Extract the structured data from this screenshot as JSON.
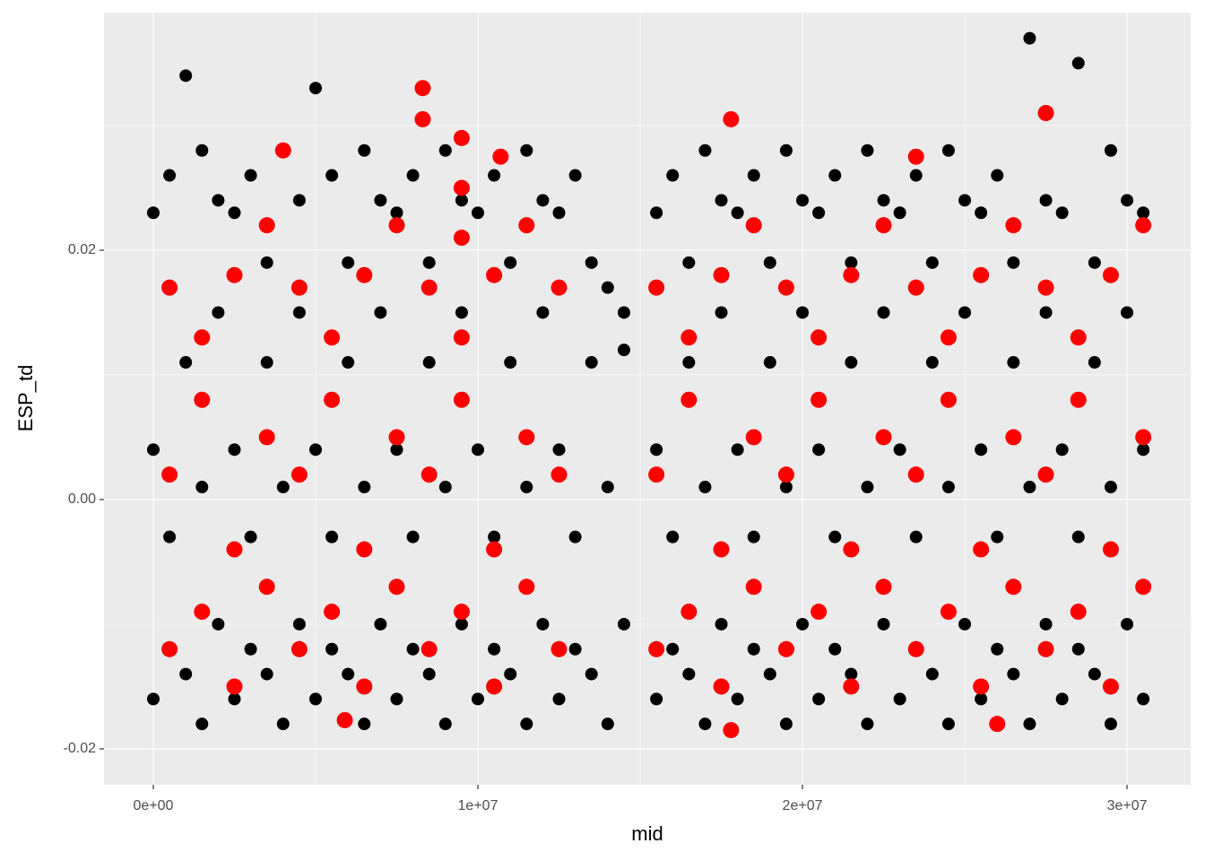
{
  "chart_data": {
    "type": "scatter",
    "x_label": "mid",
    "y_label": "ESP_td",
    "xlim": [
      -1519000,
      31960000
    ],
    "ylim": [
      -0.02288,
      0.03906
    ],
    "xticks": [
      {
        "value": 0,
        "label": "0e+00"
      },
      {
        "value": 10000000,
        "label": "1e+07"
      },
      {
        "value": 20000000,
        "label": "2e+07"
      },
      {
        "value": 30000000,
        "label": "3e+07"
      }
    ],
    "yticks": [
      -0.02,
      {
        "value": 0,
        "label": "0.00"
      },
      0.02
    ],
    "minor_xticks": [
      5000000,
      15000000,
      25000000
    ],
    "minor_yticks": [
      -0.01,
      0.01,
      0.03
    ],
    "grid": true,
    "series": [
      {
        "color": "#000000",
        "x": [
          0,
          0,
          0,
          500000.0,
          500000.0,
          500000.0,
          1000000.0,
          1000000.0,
          1000000.0,
          1500000.0,
          1500000.0,
          1500000.0,
          2000000.0,
          2000000.0,
          2000000.0,
          2500000.0,
          2500000.0,
          2500000.0,
          3000000.0,
          3000000.0,
          3000000.0,
          3500000.0,
          3500000.0,
          3500000.0,
          4000000.0,
          4000000.0,
          4000000.0,
          4500000.0,
          4500000.0,
          4500000.0,
          5000000.0,
          5000000.0,
          5000000.0,
          5500000.0,
          5500000.0,
          5500000.0,
          6000000.0,
          6000000.0,
          6000000.0,
          6500000.0,
          6500000.0,
          6500000.0,
          7000000.0,
          7000000.0,
          7000000.0,
          7500000.0,
          7500000.0,
          7500000.0,
          8000000.0,
          8000000.0,
          8000000.0,
          8500000.0,
          8500000.0,
          8500000.0,
          9000000.0,
          9000000.0,
          9000000.0,
          9500000.0,
          9500000.0,
          9500000.0,
          10000000.0,
          10000000.0,
          10000000.0,
          10500000.0,
          10500000.0,
          10500000.0,
          11000000.0,
          11000000.0,
          11000000.0,
          11500000.0,
          11500000.0,
          11500000.0,
          12000000.0,
          12000000.0,
          12000000.0,
          12500000.0,
          12500000.0,
          12500000.0,
          13000000.0,
          13000000.0,
          13000000.0,
          13500000.0,
          13500000.0,
          13500000.0,
          14000000.0,
          14000000.0,
          14000000.0,
          14500000.0,
          14500000.0,
          14500000.0,
          15500000.0,
          15500000.0,
          15500000.0,
          16000000.0,
          16000000.0,
          16000000.0,
          16500000.0,
          16500000.0,
          16500000.0,
          17000000.0,
          17000000.0,
          17000000.0,
          17500000.0,
          17500000.0,
          17500000.0,
          18000000.0,
          18000000.0,
          18000000.0,
          18500000.0,
          18500000.0,
          18500000.0,
          19000000.0,
          19000000.0,
          19000000.0,
          19500000.0,
          19500000.0,
          19500000.0,
          20000000.0,
          20000000.0,
          20000000.0,
          20500000.0,
          20500000.0,
          20500000.0,
          21000000.0,
          21000000.0,
          21000000.0,
          21500000.0,
          21500000.0,
          21500000.0,
          22000000.0,
          22000000.0,
          22000000.0,
          22500000.0,
          22500000.0,
          22500000.0,
          23000000.0,
          23000000.0,
          23000000.0,
          23500000.0,
          23500000.0,
          23500000.0,
          24000000.0,
          24000000.0,
          24000000.0,
          24500000.0,
          24500000.0,
          24500000.0,
          25000000.0,
          25000000.0,
          25000000.0,
          25500000.0,
          25500000.0,
          25500000.0,
          26000000.0,
          26000000.0,
          26000000.0,
          26500000.0,
          26500000.0,
          26500000.0,
          27000000.0,
          27000000.0,
          27000000.0,
          27500000.0,
          27500000.0,
          27500000.0,
          28000000.0,
          28000000.0,
          28000000.0,
          28500000.0,
          28500000.0,
          28500000.0,
          29000000.0,
          29000000.0,
          29000000.0,
          29500000.0,
          29500000.0,
          29500000.0,
          30000000.0,
          30000000.0,
          30000000.0,
          30500000.0,
          30500000.0,
          30500000.0
        ],
        "values": [
          -0.016,
          0.004,
          0.023,
          -0.012,
          -0.003,
          0.026,
          -0.014,
          0.011,
          0.034,
          -0.018,
          0.001,
          0.028,
          -0.01,
          0.015,
          0.024,
          -0.016,
          0.004,
          0.023,
          -0.012,
          -0.003,
          0.026,
          -0.014,
          0.011,
          0.019,
          -0.018,
          0.001,
          0.028,
          -0.01,
          0.015,
          0.024,
          -0.016,
          0.004,
          0.033,
          -0.012,
          -0.003,
          0.026,
          -0.014,
          0.011,
          0.019,
          -0.018,
          0.001,
          0.028,
          -0.01,
          0.015,
          0.024,
          -0.016,
          0.004,
          0.023,
          -0.012,
          -0.003,
          0.026,
          -0.014,
          0.011,
          0.019,
          -0.018,
          0.001,
          0.028,
          -0.01,
          0.015,
          0.024,
          -0.016,
          0.004,
          0.023,
          -0.012,
          -0.003,
          0.026,
          -0.014,
          0.011,
          0.019,
          -0.018,
          0.001,
          0.028,
          -0.01,
          0.015,
          0.024,
          -0.016,
          0.004,
          0.023,
          -0.012,
          -0.003,
          0.026,
          -0.014,
          0.011,
          0.019,
          -0.018,
          0.001,
          0.017,
          -0.01,
          0.015,
          0.012,
          -0.016,
          0.004,
          0.023,
          -0.012,
          -0.003,
          0.026,
          -0.014,
          0.011,
          0.019,
          -0.018,
          0.001,
          0.028,
          -0.01,
          0.015,
          0.024,
          -0.016,
          0.004,
          0.023,
          -0.012,
          -0.003,
          0.026,
          -0.014,
          0.011,
          0.019,
          -0.018,
          0.001,
          0.028,
          -0.01,
          0.015,
          0.024,
          -0.016,
          0.004,
          0.023,
          -0.012,
          -0.003,
          0.026,
          -0.014,
          0.011,
          0.019,
          -0.018,
          0.001,
          0.028,
          -0.01,
          0.015,
          0.024,
          -0.016,
          0.004,
          0.023,
          -0.012,
          -0.003,
          0.026,
          -0.014,
          0.011,
          0.019,
          -0.018,
          0.001,
          0.028,
          -0.01,
          0.015,
          0.024,
          -0.016,
          0.004,
          0.023,
          -0.012,
          -0.003,
          0.026,
          -0.014,
          0.011,
          0.019,
          -0.018,
          0.001,
          0.037,
          -0.01,
          0.015,
          0.024,
          -0.016,
          0.004,
          0.023,
          -0.012,
          -0.003,
          0.035,
          -0.014,
          0.011,
          0.019,
          -0.018,
          0.001,
          0.028,
          -0.01,
          0.015,
          0.024,
          -0.016,
          0.004,
          0.023
        ]
      },
      {
        "color": "#ff0000",
        "x": [
          500000.0,
          500000.0,
          500000.0,
          1500000.0,
          1500000.0,
          1500000.0,
          2500000.0,
          2500000.0,
          2500000.0,
          3500000.0,
          3500000.0,
          3500000.0,
          4500000.0,
          4500000.0,
          4500000.0,
          5500000.0,
          5500000.0,
          5500000.0,
          6500000.0,
          6500000.0,
          6500000.0,
          7500000.0,
          7500000.0,
          7500000.0,
          8500000.0,
          8500000.0,
          8500000.0,
          9500000.0,
          9500000.0,
          9500000.0,
          10500000.0,
          10500000.0,
          10500000.0,
          11500000.0,
          11500000.0,
          11500000.0,
          12500000.0,
          12500000.0,
          12500000.0,
          15500000.0,
          15500000.0,
          15500000.0,
          16500000.0,
          16500000.0,
          16500000.0,
          17500000.0,
          17500000.0,
          17500000.0,
          18500000.0,
          18500000.0,
          18500000.0,
          19500000.0,
          19500000.0,
          19500000.0,
          20500000.0,
          20500000.0,
          20500000.0,
          21500000.0,
          21500000.0,
          21500000.0,
          22500000.0,
          22500000.0,
          22500000.0,
          23500000.0,
          23500000.0,
          23500000.0,
          24500000.0,
          24500000.0,
          24500000.0,
          25500000.0,
          25500000.0,
          25500000.0,
          26500000.0,
          26500000.0,
          26500000.0,
          27500000.0,
          27500000.0,
          27500000.0,
          28500000.0,
          28500000.0,
          28500000.0,
          29500000.0,
          29500000.0,
          29500000.0,
          30500000.0,
          30500000.0,
          30500000.0,
          8300000.0,
          8300000.0,
          9500000.0,
          9500000.0,
          9500000.0,
          4000000.0,
          10700000.0,
          17800000.0,
          27500000.0,
          23500000.0,
          17800000.0,
          26000000.0,
          5900000.0
        ],
        "values": [
          -0.012,
          0.002,
          0.017,
          -0.009,
          0.008,
          0.013,
          -0.015,
          -0.004,
          0.018,
          -0.007,
          0.005,
          0.022,
          -0.012,
          0.002,
          0.017,
          -0.009,
          0.008,
          0.013,
          -0.015,
          -0.004,
          0.018,
          -0.007,
          0.005,
          0.022,
          -0.012,
          0.002,
          0.017,
          -0.009,
          0.008,
          0.013,
          -0.015,
          -0.004,
          0.018,
          -0.007,
          0.005,
          0.022,
          -0.012,
          0.002,
          0.017,
          -0.012,
          0.002,
          0.017,
          -0.009,
          0.008,
          0.013,
          -0.015,
          -0.004,
          0.018,
          -0.007,
          0.005,
          0.022,
          -0.012,
          0.002,
          0.017,
          -0.009,
          0.008,
          0.013,
          -0.015,
          -0.004,
          0.018,
          -0.007,
          0.005,
          0.022,
          -0.012,
          0.002,
          0.017,
          -0.009,
          0.008,
          0.013,
          -0.015,
          -0.004,
          0.018,
          -0.007,
          0.005,
          0.022,
          -0.012,
          0.002,
          0.017,
          -0.009,
          0.008,
          0.013,
          -0.015,
          -0.004,
          0.018,
          -0.007,
          0.005,
          0.022,
          0.033,
          0.0305,
          0.029,
          0.025,
          0.021,
          0.028,
          0.0275,
          0.0305,
          0.031,
          0.0275,
          -0.0185,
          -0.018,
          -0.0177
        ]
      }
    ]
  }
}
